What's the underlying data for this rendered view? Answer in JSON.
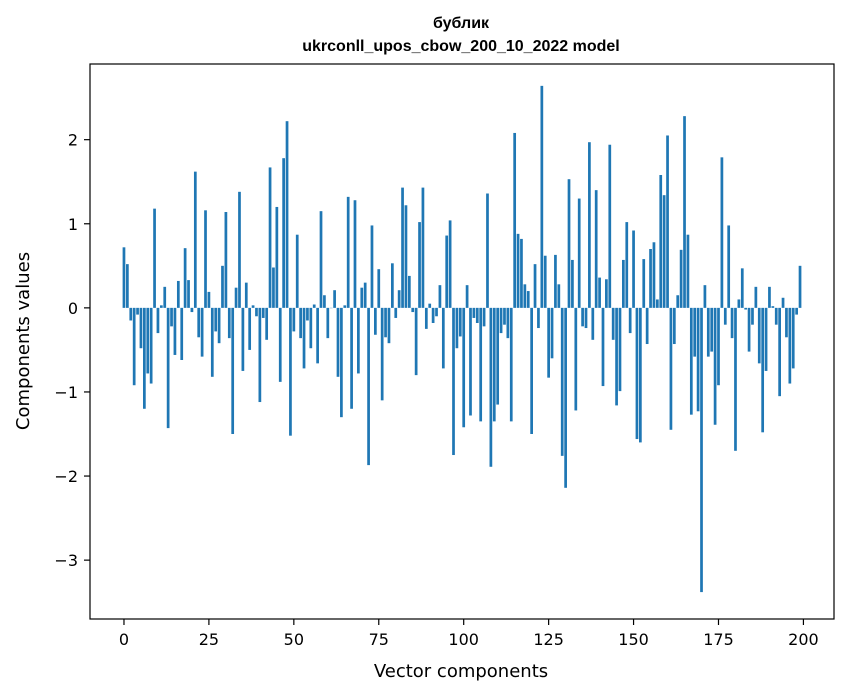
{
  "chart_data": {
    "type": "bar",
    "title_line1": "бублик",
    "title_line2": "ukrconll_upos_cbow_200_10_2022 model",
    "xlabel": "Vector components",
    "ylabel": "Components values",
    "xlim": [
      -10,
      209
    ],
    "ylim": [
      -3.7,
      2.9
    ],
    "xticks": [
      0,
      25,
      50,
      75,
      100,
      125,
      150,
      175,
      200
    ],
    "xtick_labels": [
      "0",
      "25",
      "50",
      "75",
      "100",
      "125",
      "150",
      "175",
      "200"
    ],
    "yticks": [
      -3,
      -2,
      -1,
      0,
      1,
      2
    ],
    "ytick_labels": [
      "−3",
      "−2",
      "−1",
      "0",
      "1",
      "2"
    ],
    "bar_color": "#1f77b4",
    "grid": false,
    "legend": "none",
    "values": [
      0.72,
      0.52,
      -0.15,
      -0.92,
      -0.08,
      -0.48,
      -1.2,
      -0.78,
      -0.9,
      1.18,
      -0.3,
      0.03,
      0.25,
      -1.43,
      -0.22,
      -0.56,
      0.32,
      -0.62,
      0.71,
      0.33,
      -0.05,
      1.62,
      -0.35,
      -0.58,
      1.16,
      0.19,
      -0.82,
      -0.28,
      -0.42,
      0.5,
      1.14,
      -0.36,
      -1.5,
      0.24,
      1.38,
      -0.75,
      0.3,
      -0.5,
      0.03,
      -0.1,
      -1.12,
      -0.12,
      -0.38,
      1.67,
      0.48,
      1.2,
      -0.88,
      1.78,
      2.22,
      -1.52,
      -0.28,
      0.87,
      -0.36,
      -0.72,
      -0.15,
      -0.48,
      0.04,
      -0.66,
      1.15,
      0.15,
      -0.36,
      0.0,
      0.21,
      -0.82,
      -1.3,
      0.03,
      1.32,
      -1.2,
      1.28,
      -0.78,
      0.24,
      0.3,
      -1.87,
      0.98,
      -0.32,
      0.46,
      -1.1,
      -0.35,
      -0.42,
      0.53,
      -0.12,
      0.21,
      1.43,
      1.22,
      0.38,
      -0.05,
      -0.8,
      1.02,
      1.43,
      -0.25,
      0.05,
      -0.18,
      -0.1,
      0.27,
      -0.72,
      0.86,
      1.04,
      -1.75,
      -0.48,
      -0.34,
      -1.42,
      0.27,
      -1.28,
      -0.12,
      -0.18,
      -1.35,
      -0.22,
      1.36,
      -1.89,
      -1.35,
      -1.15,
      -0.3,
      -0.2,
      -0.36,
      -1.35,
      2.08,
      0.88,
      0.82,
      0.28,
      0.2,
      -1.5,
      0.52,
      -0.24,
      2.64,
      0.62,
      -0.83,
      -0.6,
      0.63,
      0.28,
      -1.76,
      -2.14,
      1.53,
      0.57,
      -1.22,
      1.3,
      -0.22,
      -0.24,
      1.97,
      -0.38,
      1.4,
      0.36,
      -0.93,
      0.34,
      1.94,
      -0.38,
      -1.16,
      -0.99,
      0.57,
      1.02,
      -0.3,
      0.92,
      -1.56,
      -1.6,
      0.58,
      -0.43,
      0.7,
      0.78,
      0.1,
      1.58,
      1.34,
      2.05,
      -1.45,
      -0.43,
      0.15,
      0.69,
      2.28,
      0.87,
      -1.27,
      -0.58,
      -1.23,
      -3.38,
      0.27,
      -0.58,
      -0.52,
      -1.39,
      -0.92,
      1.79,
      -0.2,
      0.98,
      -0.36,
      -1.7,
      0.1,
      0.47,
      -0.02,
      -0.52,
      -0.2,
      0.25,
      -0.66,
      -1.48,
      -0.75,
      0.25,
      0.02,
      -0.2,
      -1.05,
      0.12,
      -0.35,
      -0.9,
      -0.72,
      -0.08,
      0.5
    ]
  }
}
